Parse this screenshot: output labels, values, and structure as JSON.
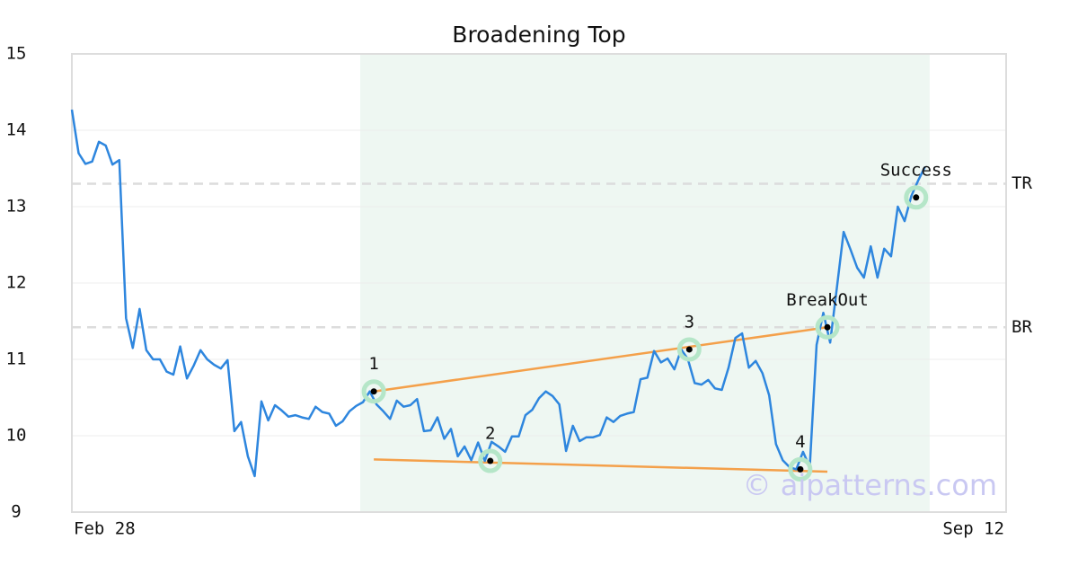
{
  "chart_data": {
    "type": "line",
    "title": "Broadening Top",
    "categories": [
      "Feb 28",
      null,
      null,
      null,
      null,
      null,
      null,
      null,
      null,
      null,
      null,
      null,
      null,
      null,
      null,
      null,
      null,
      null,
      null,
      null,
      null,
      null,
      null,
      null,
      null,
      null,
      null,
      null,
      null,
      null,
      null,
      null,
      null,
      null,
      null,
      null,
      null,
      null,
      null,
      null,
      null,
      null,
      null,
      null,
      null,
      null,
      null,
      null,
      null,
      null,
      null,
      null,
      null,
      null,
      null,
      null,
      null,
      null,
      null,
      null,
      null,
      null,
      null,
      null,
      null,
      null,
      null,
      null,
      null,
      null,
      null,
      null,
      null,
      null,
      null,
      null,
      null,
      null,
      null,
      null,
      null,
      null,
      null,
      null,
      null,
      null,
      null,
      null,
      null,
      null,
      null,
      null,
      null,
      null,
      null,
      null,
      null,
      null,
      null,
      null,
      null,
      null,
      null,
      null,
      null,
      null,
      null,
      null,
      null,
      null,
      null,
      null,
      null,
      null,
      null,
      null,
      null,
      null,
      null,
      null,
      null,
      null,
      null,
      null,
      null,
      null,
      null,
      null,
      null,
      null,
      null,
      null,
      null,
      null,
      null,
      null,
      null,
      null,
      "Sep 12"
    ],
    "series": [
      {
        "color": "#2e86de",
        "values": [
          14.27,
          13.7,
          13.56,
          13.59,
          13.85,
          13.8,
          13.55,
          13.61,
          11.54,
          11.15,
          11.66,
          11.12,
          11.0,
          11.0,
          10.84,
          10.8,
          11.17,
          10.75,
          10.92,
          11.12,
          11.0,
          10.93,
          10.88,
          10.99,
          10.06,
          10.18,
          9.73,
          9.47,
          10.45,
          10.2,
          10.4,
          10.33,
          10.25,
          10.27,
          10.24,
          10.22,
          10.38,
          10.31,
          10.29,
          10.13,
          10.19,
          10.32,
          10.39,
          10.44,
          10.58,
          10.41,
          10.32,
          10.22,
          10.46,
          10.38,
          10.4,
          10.48,
          10.06,
          10.07,
          10.24,
          9.96,
          10.09,
          9.73,
          9.86,
          9.68,
          9.91,
          9.67,
          9.92,
          9.86,
          9.79,
          9.99,
          9.99,
          10.27,
          10.34,
          10.49,
          10.58,
          10.52,
          10.41,
          9.8,
          10.13,
          9.93,
          9.98,
          9.98,
          10.01,
          10.24,
          10.18,
          10.26,
          10.29,
          10.31,
          10.74,
          10.76,
          11.11,
          10.96,
          11.01,
          10.87,
          11.13,
          11.0,
          10.69,
          10.67,
          10.73,
          10.62,
          10.6,
          10.89,
          11.28,
          11.34,
          10.89,
          10.98,
          10.82,
          10.53,
          9.89,
          9.68,
          9.59,
          9.56,
          9.79,
          9.59,
          11.19,
          11.61,
          11.22,
          11.94,
          12.67,
          12.44,
          12.2,
          12.07,
          12.48,
          12.07,
          12.45,
          12.35,
          13.0,
          12.81,
          13.14,
          13.34,
          13.52,
          null,
          null,
          null,
          null,
          null,
          null,
          null,
          null,
          null,
          null,
          null,
          null
        ]
      }
    ],
    "ylim": [
      9,
      15
    ],
    "yticks": [
      9,
      10,
      11,
      12,
      13,
      14,
      15
    ],
    "grid": true,
    "shaded_range": [
      42.6,
      126.7
    ],
    "shade_color": "#eef7f2",
    "hlines": [
      {
        "label": "TR",
        "value": 13.3
      },
      {
        "label": "BR",
        "value": 11.42
      }
    ],
    "trend_color": "#f4a04a",
    "trendlines": [
      {
        "x": [
          44.6,
          111.6
        ],
        "values": [
          10.58,
          11.42
        ]
      },
      {
        "x": [
          44.6,
          111.6
        ],
        "values": [
          9.69,
          9.53
        ]
      }
    ],
    "annotations": [
      {
        "label": "1",
        "x": 44.6,
        "value": 10.58
      },
      {
        "label": "2",
        "x": 61.8,
        "value": 9.67
      },
      {
        "label": "3",
        "x": 91.2,
        "value": 11.13
      },
      {
        "label": "4",
        "x": 107.6,
        "value": 9.56
      },
      {
        "label": "BreakOut",
        "x": 111.6,
        "value": 11.42
      },
      {
        "label": "Success",
        "x": 124.7,
        "value": 13.12
      }
    ],
    "watermark": "© aipatterns.com"
  }
}
